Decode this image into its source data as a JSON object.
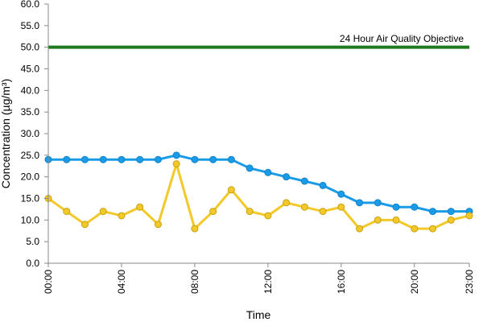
{
  "chart_data": {
    "type": "line",
    "xlabel": "Time",
    "ylabel": "Concentration (µg/m³)",
    "ylim": [
      0,
      60
    ],
    "y_ticks": [
      "0.0",
      "5.0",
      "10.0",
      "15.0",
      "20.0",
      "25.0",
      "30.0",
      "35.0",
      "40.0",
      "45.0",
      "50.0",
      "55.0",
      "60.0"
    ],
    "x": [
      "00:00",
      "01:00",
      "02:00",
      "03:00",
      "04:00",
      "05:00",
      "06:00",
      "07:00",
      "08:00",
      "09:00",
      "10:00",
      "11:00",
      "12:00",
      "13:00",
      "14:00",
      "15:00",
      "16:00",
      "17:00",
      "18:00",
      "19:00",
      "20:00",
      "21:00",
      "22:00",
      "23:00"
    ],
    "x_ticks": [
      "00:00",
      "04:00",
      "08:00",
      "12:00",
      "16:00",
      "20:00",
      "23:00"
    ],
    "grid": false,
    "series": [
      {
        "color": "#1a9be8",
        "values": [
          24,
          24,
          24,
          24,
          24,
          24,
          24,
          25,
          24,
          24,
          24,
          22,
          21,
          20,
          19,
          18,
          16,
          14,
          14,
          13,
          13,
          12,
          12,
          12
        ]
      },
      {
        "color": "#f2c928",
        "values": [
          15,
          12,
          9,
          12,
          11,
          13,
          9,
          23,
          8,
          12,
          17,
          12,
          11,
          14,
          13,
          12,
          13,
          8,
          10,
          10,
          8,
          8,
          10,
          11
        ]
      }
    ],
    "reference_line": {
      "value": 50,
      "label": "24 Hour Air Quality Objective",
      "color": "#1e7a1e"
    }
  }
}
